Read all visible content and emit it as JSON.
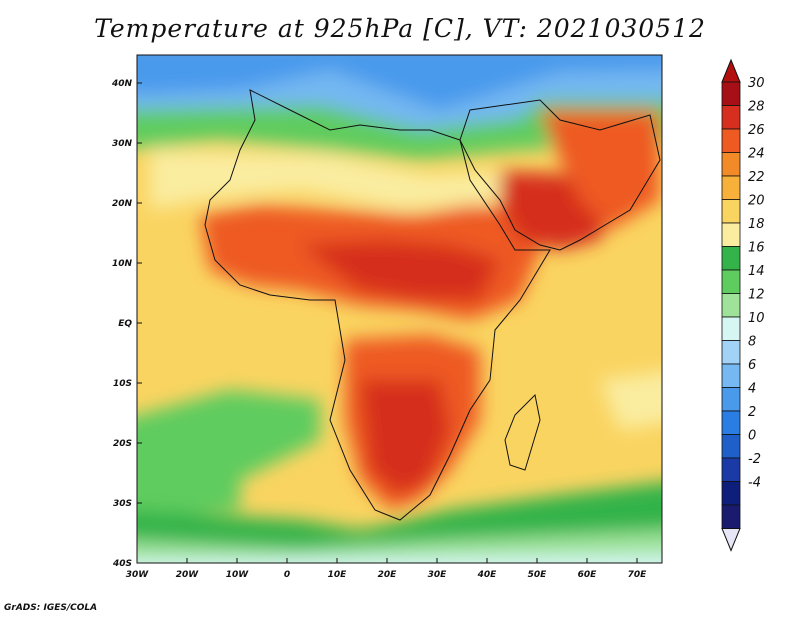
{
  "title": "Temperature at 925hPa [C], VT: 2021030512",
  "credit": "GrADS: IGES/COLA",
  "lat_labels": [
    "40N",
    "30N",
    "20N",
    "10N",
    "EQ",
    "10S",
    "20S",
    "30S",
    "40S"
  ],
  "lon_labels": [
    "30W",
    "20W",
    "10W",
    "0",
    "10E",
    "20E",
    "30E",
    "40E",
    "50E",
    "60E",
    "70E"
  ],
  "colorbar": {
    "labels": [
      "30",
      "28",
      "26",
      "24",
      "22",
      "20",
      "18",
      "16",
      "14",
      "12",
      "10",
      "8",
      "6",
      "4",
      "2",
      "0",
      "-2",
      "-4"
    ],
    "colors": [
      "#a50f15",
      "#d62f1f",
      "#ee5a22",
      "#f28a28",
      "#f7b13a",
      "#fad461",
      "#faeda0",
      "#33b34a",
      "#5fcc5f",
      "#9fe39a",
      "#d6f6f4",
      "#a2d2f6",
      "#75b8f2",
      "#4a9aec",
      "#2a7de2",
      "#1f5fc9",
      "#1b3aa5",
      "#0d1f7a",
      "#1a1a6e"
    ],
    "top_triangle": "#b30f0f",
    "bottom_triangle": "#e6e6f7"
  }
}
